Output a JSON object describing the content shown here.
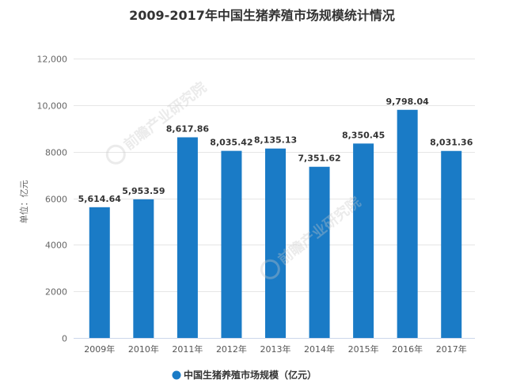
{
  "branding": {
    "watermark": "前瞻产业研究院"
  },
  "chart_data": {
    "type": "bar",
    "title": "2009-2017年中国生猪养殖市场规模统计情况",
    "xlabel": "",
    "ylabel": "单位：亿元",
    "categories": [
      "2009年",
      "2010年",
      "2011年",
      "2012年",
      "2013年",
      "2014年",
      "2015年",
      "2016年",
      "2017年"
    ],
    "series": [
      {
        "name": "中国生猪养殖市场规模（亿元）",
        "color": "#1a7bc6",
        "values": [
          5614.64,
          5953.59,
          8617.86,
          8035.42,
          8135.13,
          7351.62,
          8350.45,
          9798.04,
          8031.36
        ],
        "value_labels": [
          "5,614.64",
          "5,953.59",
          "8,617.86",
          "8,035.42",
          "8,135.13",
          "7,351.62",
          "8,350.45",
          "9,798.04",
          "8,031.36"
        ]
      }
    ],
    "ylim": [
      0,
      12000
    ],
    "yticks": [
      0,
      2000,
      4000,
      6000,
      8000,
      10000,
      12000
    ],
    "ytick_labels": [
      "0",
      "2000",
      "4000",
      "6000",
      "8000",
      "10,000",
      "12,000"
    ],
    "grid": true,
    "legend": "bottom"
  }
}
